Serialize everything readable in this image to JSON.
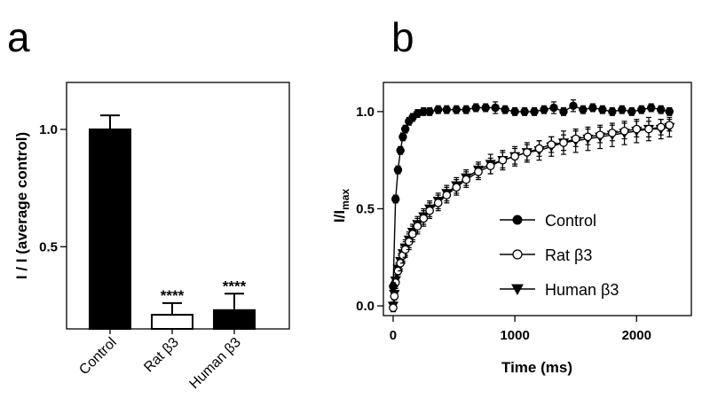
{
  "chart_data": [
    {
      "panel": "a",
      "type": "bar",
      "categories": [
        "Control",
        "Rat β3",
        "Human β3"
      ],
      "values": [
        1.0,
        0.21,
        0.23
      ],
      "errors": [
        0.06,
        0.05,
        0.07
      ],
      "fills": [
        "#000000",
        "#ffffff",
        "#000000"
      ],
      "significance": [
        "",
        "****",
        "****"
      ],
      "ylabel": "I / I (average control)",
      "ylim": [
        0.15,
        1.2
      ],
      "yticks": [
        0.5,
        1.0
      ],
      "ytick_labels": [
        "0.5",
        "1.0"
      ],
      "grid": false
    },
    {
      "panel": "b",
      "type": "scatter",
      "xlabel": "Time (ms)",
      "ylabel": "I/I",
      "ylabel_sub": "max",
      "xlim": [
        -80,
        2450
      ],
      "ylim": [
        -0.05,
        1.15
      ],
      "xticks": [
        0,
        1000,
        2000
      ],
      "xtick_labels": [
        "0",
        "1000",
        "2000"
      ],
      "yticks": [
        0,
        0.5,
        1.0
      ],
      "ytick_labels": [
        "0.0",
        "0.5",
        "1.0"
      ],
      "legend_position": "bottom-right",
      "grid": false,
      "series": [
        {
          "name": "Control",
          "marker": "filled-circle",
          "x": [
            0,
            20,
            40,
            60,
            80,
            100,
            130,
            160,
            200,
            250,
            300,
            370,
            440,
            520,
            600,
            680,
            760,
            840,
            920,
            1000,
            1080,
            1160,
            1240,
            1320,
            1400,
            1480,
            1560,
            1640,
            1720,
            1800,
            1880,
            1960,
            2040,
            2120,
            2200,
            2270
          ],
          "y": [
            0.1,
            0.55,
            0.7,
            0.8,
            0.87,
            0.91,
            0.95,
            0.97,
            0.99,
            1.0,
            1.0,
            1.01,
            1.01,
            1.01,
            1.01,
            1.02,
            1.02,
            1.02,
            1.01,
            1.0,
            1.0,
            1.0,
            1.01,
            1.02,
            1.0,
            1.03,
            1.01,
            1.02,
            1.01,
            1.0,
            1.01,
            1.0,
            1.01,
            1.02,
            1.01,
            1.0
          ],
          "err": [
            0.02,
            0.02,
            0.02,
            0.02,
            0.02,
            0.02,
            0.02,
            0.02,
            0.02,
            0.02,
            0.02,
            0.02,
            0.02,
            0.02,
            0.02,
            0.02,
            0.02,
            0.03,
            0.02,
            0.02,
            0.02,
            0.02,
            0.02,
            0.03,
            0.02,
            0.03,
            0.02,
            0.02,
            0.02,
            0.02,
            0.02,
            0.02,
            0.02,
            0.02,
            0.02,
            0.02
          ]
        },
        {
          "name": "Rat β3",
          "marker": "open-circle",
          "x": [
            0,
            10,
            20,
            40,
            60,
            80,
            100,
            130,
            160,
            200,
            250,
            300,
            370,
            440,
            520,
            600,
            700,
            800,
            900,
            1000,
            1100,
            1200,
            1300,
            1400,
            1500,
            1600,
            1700,
            1800,
            1900,
            2000,
            2100,
            2200,
            2270
          ],
          "y": [
            -0.01,
            0.05,
            0.12,
            0.18,
            0.22,
            0.26,
            0.29,
            0.33,
            0.37,
            0.41,
            0.45,
            0.49,
            0.53,
            0.57,
            0.61,
            0.65,
            0.69,
            0.72,
            0.75,
            0.77,
            0.79,
            0.81,
            0.83,
            0.84,
            0.86,
            0.87,
            0.88,
            0.89,
            0.9,
            0.91,
            0.91,
            0.92,
            0.93
          ],
          "err": [
            0.02,
            0.03,
            0.03,
            0.03,
            0.04,
            0.04,
            0.04,
            0.04,
            0.04,
            0.04,
            0.04,
            0.04,
            0.04,
            0.04,
            0.04,
            0.04,
            0.04,
            0.04,
            0.04,
            0.04,
            0.04,
            0.04,
            0.04,
            0.04,
            0.04,
            0.04,
            0.04,
            0.04,
            0.04,
            0.04,
            0.04,
            0.04,
            0.03
          ]
        },
        {
          "name": "Human β3",
          "marker": "filled-triangle-down",
          "x": [
            0,
            10,
            20,
            40,
            60,
            80,
            100,
            130,
            160,
            200,
            250,
            300,
            370,
            440,
            520,
            600,
            700,
            800,
            900,
            1000,
            1100,
            1200,
            1300,
            1400,
            1500,
            1600,
            1700,
            1800,
            1900,
            2000,
            2100,
            2200,
            2270
          ],
          "y": [
            0.0,
            0.06,
            0.13,
            0.19,
            0.23,
            0.27,
            0.3,
            0.34,
            0.38,
            0.42,
            0.46,
            0.5,
            0.54,
            0.58,
            0.62,
            0.66,
            0.7,
            0.73,
            0.75,
            0.77,
            0.79,
            0.8,
            0.82,
            0.84,
            0.85,
            0.86,
            0.87,
            0.88,
            0.89,
            0.9,
            0.91,
            0.91,
            0.92
          ],
          "err": [
            0.02,
            0.03,
            0.03,
            0.03,
            0.04,
            0.04,
            0.04,
            0.04,
            0.04,
            0.04,
            0.04,
            0.04,
            0.04,
            0.04,
            0.04,
            0.04,
            0.04,
            0.05,
            0.05,
            0.05,
            0.05,
            0.05,
            0.05,
            0.06,
            0.06,
            0.06,
            0.06,
            0.06,
            0.06,
            0.06,
            0.06,
            0.05,
            0.05
          ]
        }
      ]
    }
  ],
  "panel_labels": {
    "a": "a",
    "b": "b"
  }
}
